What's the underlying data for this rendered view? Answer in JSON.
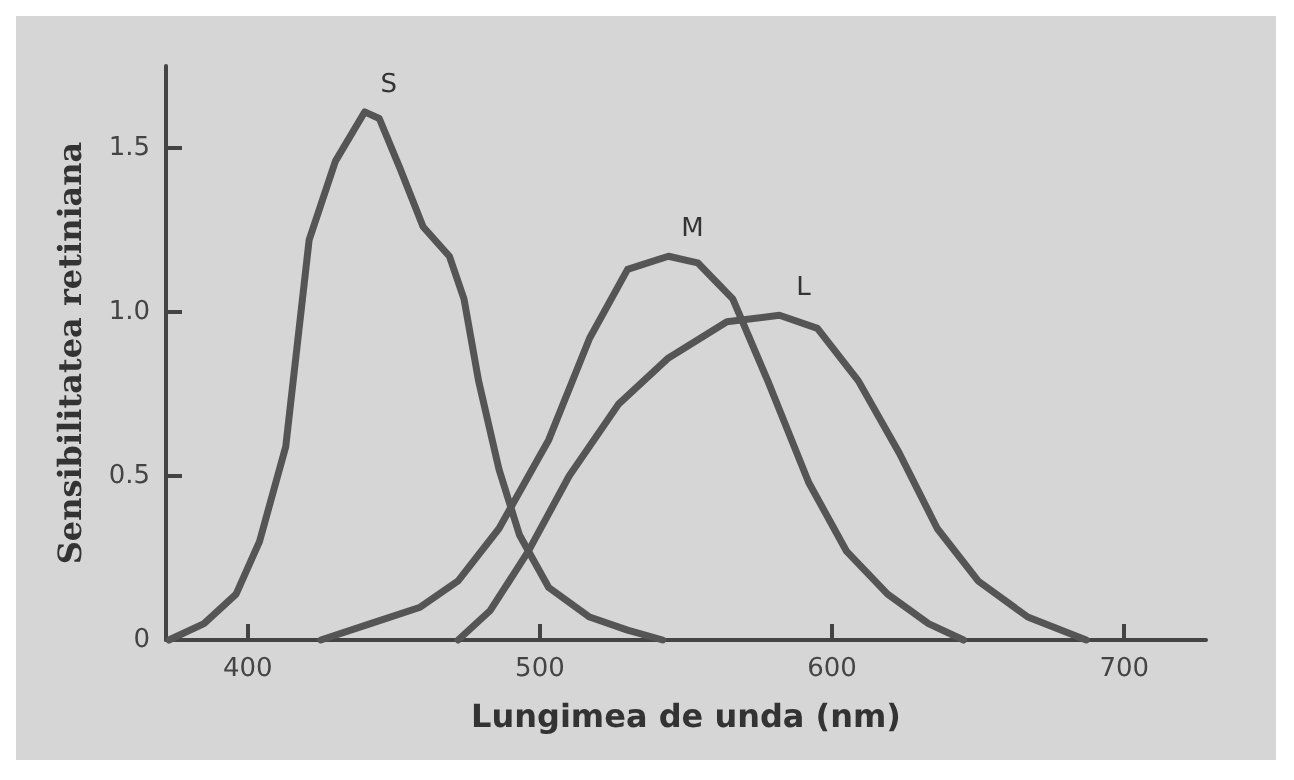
{
  "chart_data": {
    "type": "line",
    "xlabel": "Lungimea de unda (nm)",
    "ylabel": "Sensibilitatea retiniana",
    "xlim": [
      372,
      728
    ],
    "xticks": [
      400,
      500,
      600,
      700
    ],
    "ylim": [
      0,
      1.75
    ],
    "yticks": [
      0,
      0.5,
      {
        "value": 1,
        "label": "1.0"
      },
      1.5
    ],
    "grid": false,
    "legend": false,
    "marker": "none",
    "line_style": "solid",
    "series": [
      {
        "name": "S",
        "color": "#555555",
        "x": [
          373,
          385,
          396,
          404,
          413,
          421,
          430,
          440,
          445,
          452,
          460,
          469,
          474,
          479,
          486,
          493,
          503,
          517,
          530,
          542
        ],
        "values": [
          0,
          0.05,
          0.14,
          0.3,
          0.59,
          1.22,
          1.46,
          1.61,
          1.59,
          1.44,
          1.26,
          1.17,
          1.04,
          0.79,
          0.52,
          0.32,
          0.16,
          0.07,
          0.03,
          0
        ]
      },
      {
        "name": "M",
        "color": "#555555",
        "x": [
          425,
          442,
          459,
          472,
          486,
          503,
          517,
          530,
          544,
          554,
          566,
          578,
          592,
          605,
          619,
          633,
          645
        ],
        "values": [
          0,
          0.05,
          0.1,
          0.18,
          0.34,
          0.61,
          0.92,
          1.13,
          1.17,
          1.15,
          1.04,
          0.79,
          0.48,
          0.27,
          0.14,
          0.05,
          0
        ]
      },
      {
        "name": "L",
        "color": "#555555",
        "x": [
          472,
          483,
          496,
          510,
          527,
          544,
          564,
          582,
          595,
          609,
          623,
          636,
          650,
          667,
          687
        ],
        "values": [
          0,
          0.09,
          0.27,
          0.5,
          0.72,
          0.86,
          0.97,
          0.99,
          0.95,
          0.79,
          0.57,
          0.34,
          0.18,
          0.07,
          0
        ]
      }
    ]
  }
}
